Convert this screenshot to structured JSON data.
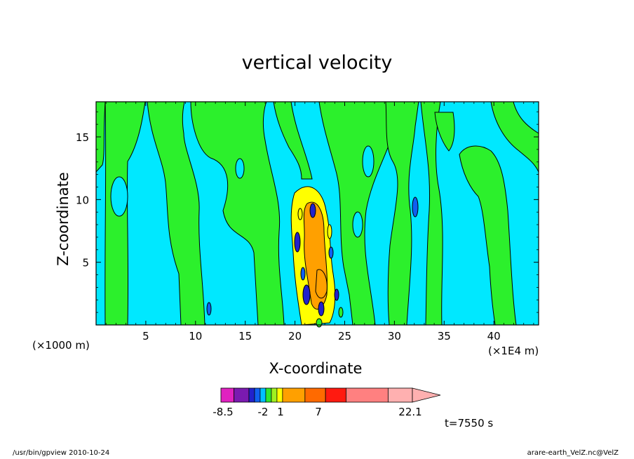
{
  "chart_data": {
    "type": "contour",
    "title": "vertical velocity",
    "xlabel": "X-coordinate",
    "ylabel": "Z-coordinate",
    "x_unit_left": "(×1000 m)",
    "x_unit_right": "(×1E4 m)",
    "xlim": [
      0,
      44.5
    ],
    "ylim": [
      0,
      17.8
    ],
    "xticks": [
      5,
      10,
      15,
      20,
      25,
      30,
      35,
      40
    ],
    "yticks": [
      5,
      10,
      15
    ],
    "colorbar": {
      "ticks": [
        "-8.5",
        "-2",
        "1",
        "7",
        "22.1"
      ],
      "colors": [
        "#e021c0",
        "#7a1ab0",
        "#2222cc",
        "#1060f0",
        "#00c0ff",
        "#2ee62e",
        "#a0f020",
        "#ffff00",
        "#ffa000",
        "#ff6a00",
        "#ff1a10",
        "#ff8080",
        "#ffb0b0"
      ],
      "weights": [
        1.4,
        1.6,
        0.6,
        0.6,
        0.6,
        0.6,
        0.6,
        0.6,
        2.4,
        2.2,
        2.2,
        4.5,
        2.6
      ]
    },
    "fill_colors": {
      "background": "#00e8ff",
      "positive": "#2cf02c",
      "weak_negative": "#1060f0",
      "strong_negative": "#2222cc",
      "yellow": "#ffff00",
      "orange": "#ffa000"
    }
  },
  "annotations": {
    "time": "t=7550 s",
    "footer_left": "/usr/bin/gpview  2010-10-24",
    "footer_right": "arare-earth_VelZ.nc@VelZ"
  }
}
